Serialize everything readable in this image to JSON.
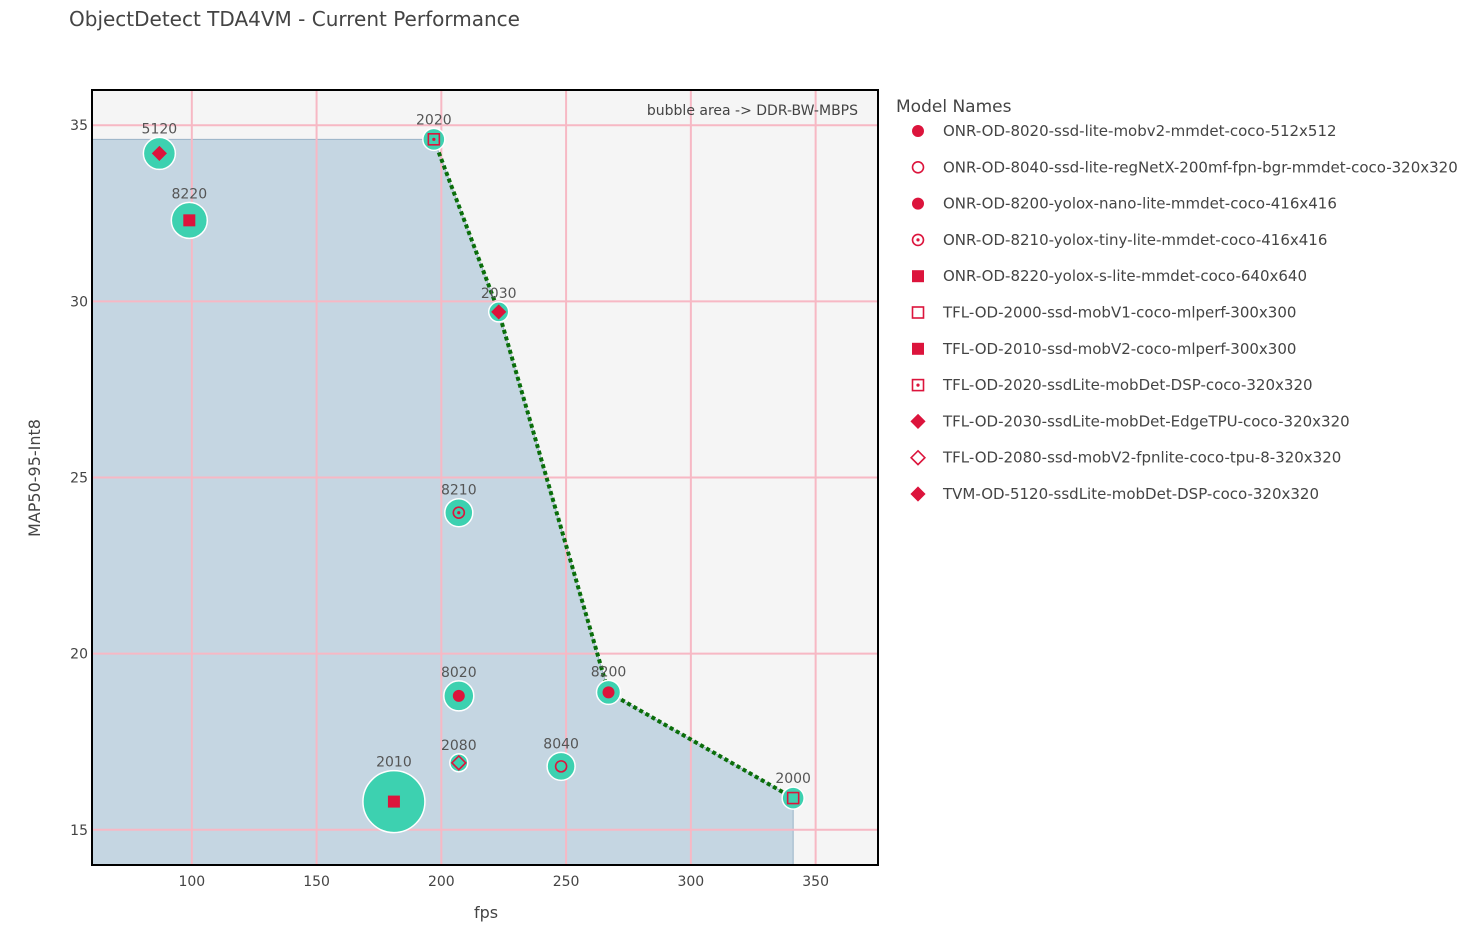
{
  "page": {
    "title": "ObjectDetect TDA4VM - Current Performance"
  },
  "chart_data": {
    "type": "scatter",
    "title": "ObjectDetect TDA4VM - Current Performance",
    "xlabel": "fps",
    "ylabel": "MAP50-95-Int8",
    "xlim": [
      60,
      375
    ],
    "ylim": [
      14,
      36
    ],
    "x_ticks": [
      100,
      150,
      200,
      250,
      300,
      350
    ],
    "y_ticks": [
      15,
      20,
      25,
      30,
      35
    ],
    "grid": true,
    "legend_title": "Model Names",
    "legend_position": "right",
    "annotation": "bubble area -> DDR-BW-MBPS",
    "colors": {
      "bubble": "#3dd1b0",
      "marker": "#dc143c",
      "frontier": "#0a6e0a",
      "fill": "#c5d6e2",
      "grid": "#f7b8c4",
      "plot_bg": "#f5f5f5"
    },
    "points": [
      {
        "label": "8020",
        "name": "ONR-OD-8020-ssd-lite-mobv2-mmdet-coco-512x512",
        "fps": 207,
        "map": 18.8,
        "bubble_size": 15,
        "symbol": "circle"
      },
      {
        "label": "8040",
        "name": "ONR-OD-8040-ssd-lite-regNetX-200mf-fpn-bgr-mmdet-coco-320x320",
        "fps": 248,
        "map": 16.8,
        "bubble_size": 14,
        "symbol": "circle-open"
      },
      {
        "label": "8200",
        "name": "ONR-OD-8200-yolox-nano-lite-mmdet-coco-416x416",
        "fps": 267,
        "map": 18.9,
        "bubble_size": 12,
        "symbol": "circle"
      },
      {
        "label": "8210",
        "name": "ONR-OD-8210-yolox-tiny-lite-mmdet-coco-416x416",
        "fps": 207,
        "map": 24.0,
        "bubble_size": 14,
        "symbol": "circle-dot"
      },
      {
        "label": "8220",
        "name": "ONR-OD-8220-yolox-s-lite-mmdet-coco-640x640",
        "fps": 99,
        "map": 32.3,
        "bubble_size": 18,
        "symbol": "square"
      },
      {
        "label": "2000",
        "name": "TFL-OD-2000-ssd-mobV1-coco-mlperf-300x300",
        "fps": 341,
        "map": 15.9,
        "bubble_size": 11,
        "symbol": "square-open"
      },
      {
        "label": "2010",
        "name": "TFL-OD-2010-ssd-mobV2-coco-mlperf-300x300",
        "fps": 181,
        "map": 15.8,
        "bubble_size": 31,
        "symbol": "square"
      },
      {
        "label": "2020",
        "name": "TFL-OD-2020-ssdLite-mobDet-DSP-coco-320x320",
        "fps": 197,
        "map": 34.6,
        "bubble_size": 11,
        "symbol": "square-dot"
      },
      {
        "label": "2030",
        "name": "TFL-OD-2030-ssdLite-mobDet-EdgeTPU-coco-320x320",
        "fps": 223,
        "map": 29.7,
        "bubble_size": 10,
        "symbol": "diamond"
      },
      {
        "label": "2080",
        "name": "TFL-OD-2080-ssd-mobV2-fpnlite-coco-tpu-8-320x320",
        "fps": 207,
        "map": 16.9,
        "bubble_size": 9,
        "symbol": "diamond-open"
      },
      {
        "label": "5120",
        "name": "TVM-OD-5120-ssdLite-mobDet-DSP-coco-320x320",
        "fps": 87,
        "map": 34.2,
        "bubble_size": 16,
        "symbol": "diamond"
      }
    ],
    "frontier": [
      {
        "fps": 197,
        "map": 34.6
      },
      {
        "fps": 223,
        "map": 29.7
      },
      {
        "fps": 267,
        "map": 18.9
      },
      {
        "fps": 341,
        "map": 15.9
      }
    ],
    "area": [
      {
        "fps": 60,
        "map": 34.6
      },
      {
        "fps": 197,
        "map": 34.6
      },
      {
        "fps": 223,
        "map": 29.7
      },
      {
        "fps": 267,
        "map": 18.9
      },
      {
        "fps": 341,
        "map": 15.9
      },
      {
        "fps": 341,
        "map": 14
      }
    ]
  }
}
